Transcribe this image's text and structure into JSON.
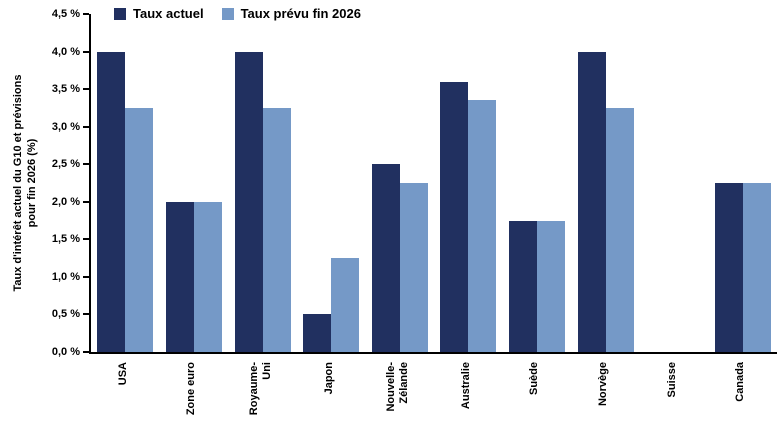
{
  "chart_data": {
    "type": "bar",
    "title": "",
    "y_axis_title_line1": "Taux d'intérêt actuel du G10 et prévisions",
    "y_axis_title_line2": "pour fin 2026 (%)",
    "categories": [
      "USA",
      "Zone euro",
      "Royaume-\nUni",
      "Japon",
      "Nouvelle-\nZélande",
      "Australie",
      "Suède",
      "Norvège",
      "Suisse",
      "Canada"
    ],
    "series": [
      {
        "name": "Taux actuel",
        "color": "#213060",
        "values": [
          4.0,
          2.0,
          4.0,
          0.5,
          2.5,
          3.6,
          1.75,
          4.0,
          0.0,
          2.25
        ]
      },
      {
        "name": "Taux prévu fin 2026",
        "color": "#7599C7",
        "values": [
          3.25,
          2.0,
          3.25,
          1.25,
          2.25,
          3.35,
          1.75,
          3.25,
          0.0,
          2.25
        ]
      }
    ],
    "y_ticks": [
      "4,5 %",
      "4,0 %",
      "3,5 %",
      "3,0 %",
      "2,5 %",
      "2,0 %",
      "1,5 %",
      "1,0 %",
      "0,5 %",
      "0,0 %"
    ],
    "y_tick_values": [
      4.5,
      4.0,
      3.5,
      3.0,
      2.5,
      2.0,
      1.5,
      1.0,
      0.5,
      0.0
    ],
    "ylim": [
      0,
      4.5
    ],
    "legend_position": "top",
    "grid": false,
    "axis_color": "#000000",
    "background": "#FFFFFF"
  }
}
